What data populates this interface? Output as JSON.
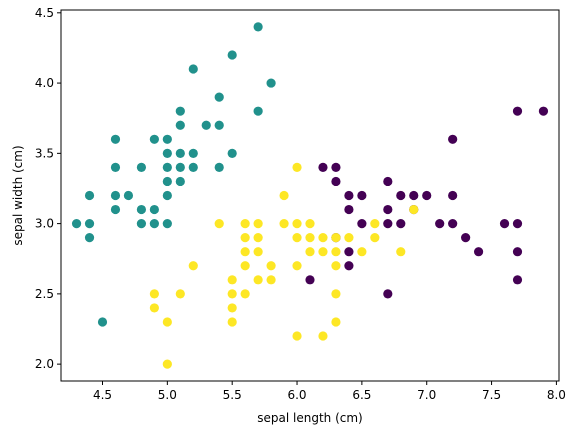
{
  "chart_data": {
    "type": "scatter",
    "xlabel": "sepal length (cm)",
    "ylabel": "sepal width (cm)",
    "xlim": [
      4.18,
      8.02
    ],
    "ylim": [
      1.88,
      4.52
    ],
    "xticks": [
      4.5,
      5.0,
      5.5,
      6.0,
      6.5,
      7.0,
      7.5,
      8.0
    ],
    "xtick_labels": [
      "4.5",
      "5.0",
      "5.5",
      "6.0",
      "6.5",
      "7.0",
      "7.5",
      "8.0"
    ],
    "yticks": [
      2.0,
      2.5,
      3.0,
      3.5,
      4.0,
      4.5
    ],
    "ytick_labels": [
      "2.0",
      "2.5",
      "3.0",
      "3.5",
      "4.0",
      "4.5"
    ],
    "grid": false,
    "legend": "none",
    "series": [
      {
        "color": "#21918c",
        "points": [
          [
            4.3,
            3.0
          ],
          [
            4.4,
            2.9
          ],
          [
            4.4,
            3.0
          ],
          [
            4.4,
            3.2
          ],
          [
            4.5,
            2.3
          ],
          [
            4.6,
            3.1
          ],
          [
            4.6,
            3.2
          ],
          [
            4.6,
            3.4
          ],
          [
            4.6,
            3.6
          ],
          [
            4.7,
            3.2
          ],
          [
            4.8,
            3.0
          ],
          [
            4.8,
            3.1
          ],
          [
            4.8,
            3.4
          ],
          [
            4.9,
            3.0
          ],
          [
            4.9,
            3.1
          ],
          [
            4.9,
            3.6
          ],
          [
            5.0,
            3.0
          ],
          [
            5.0,
            3.2
          ],
          [
            5.0,
            3.3
          ],
          [
            5.0,
            3.4
          ],
          [
            5.0,
            3.5
          ],
          [
            5.0,
            3.6
          ],
          [
            5.1,
            3.3
          ],
          [
            5.1,
            3.4
          ],
          [
            5.1,
            3.5
          ],
          [
            5.1,
            3.7
          ],
          [
            5.1,
            3.8
          ],
          [
            5.2,
            3.4
          ],
          [
            5.2,
            3.5
          ],
          [
            5.2,
            4.1
          ],
          [
            5.3,
            3.7
          ],
          [
            5.4,
            3.4
          ],
          [
            5.4,
            3.7
          ],
          [
            5.4,
            3.9
          ],
          [
            5.5,
            3.5
          ],
          [
            5.5,
            4.2
          ],
          [
            5.7,
            3.8
          ],
          [
            5.7,
            4.4
          ],
          [
            5.8,
            4.0
          ]
        ]
      },
      {
        "color": "#440154",
        "points": [
          [
            6.1,
            2.6
          ],
          [
            6.2,
            3.4
          ],
          [
            6.3,
            2.9
          ],
          [
            6.3,
            3.3
          ],
          [
            6.3,
            3.4
          ],
          [
            6.4,
            2.7
          ],
          [
            6.4,
            2.8
          ],
          [
            6.4,
            3.1
          ],
          [
            6.4,
            3.2
          ],
          [
            6.5,
            3.0
          ],
          [
            6.5,
            3.2
          ],
          [
            6.7,
            2.5
          ],
          [
            6.7,
            3.0
          ],
          [
            6.7,
            3.1
          ],
          [
            6.7,
            3.3
          ],
          [
            6.8,
            3.0
          ],
          [
            6.8,
            3.2
          ],
          [
            6.9,
            3.1
          ],
          [
            6.9,
            3.2
          ],
          [
            7.0,
            3.2
          ],
          [
            7.1,
            3.0
          ],
          [
            7.2,
            3.0
          ],
          [
            7.2,
            3.2
          ],
          [
            7.2,
            3.6
          ],
          [
            7.3,
            2.9
          ],
          [
            7.4,
            2.8
          ],
          [
            7.6,
            3.0
          ],
          [
            7.7,
            2.6
          ],
          [
            7.7,
            2.8
          ],
          [
            7.7,
            3.0
          ],
          [
            7.7,
            3.8
          ],
          [
            7.9,
            3.8
          ]
        ]
      },
      {
        "color": "#fde725",
        "points": [
          [
            4.9,
            2.4
          ],
          [
            4.9,
            2.5
          ],
          [
            5.0,
            2.0
          ],
          [
            5.0,
            2.3
          ],
          [
            5.1,
            2.5
          ],
          [
            5.2,
            2.7
          ],
          [
            5.4,
            3.0
          ],
          [
            5.5,
            2.3
          ],
          [
            5.5,
            2.4
          ],
          [
            5.5,
            2.5
          ],
          [
            5.5,
            2.6
          ],
          [
            5.6,
            2.5
          ],
          [
            5.6,
            2.7
          ],
          [
            5.6,
            2.8
          ],
          [
            5.6,
            2.9
          ],
          [
            5.6,
            3.0
          ],
          [
            5.7,
            2.6
          ],
          [
            5.7,
            2.8
          ],
          [
            5.7,
            2.9
          ],
          [
            5.7,
            3.0
          ],
          [
            5.8,
            2.6
          ],
          [
            5.8,
            2.7
          ],
          [
            5.9,
            3.0
          ],
          [
            5.9,
            3.2
          ],
          [
            6.0,
            2.2
          ],
          [
            6.0,
            2.7
          ],
          [
            6.0,
            2.9
          ],
          [
            6.0,
            3.0
          ],
          [
            6.0,
            3.4
          ],
          [
            6.1,
            2.8
          ],
          [
            6.1,
            2.9
          ],
          [
            6.1,
            3.0
          ],
          [
            6.2,
            2.2
          ],
          [
            6.2,
            2.8
          ],
          [
            6.2,
            2.9
          ],
          [
            6.3,
            2.3
          ],
          [
            6.3,
            2.5
          ],
          [
            6.3,
            2.7
          ],
          [
            6.3,
            2.8
          ],
          [
            6.3,
            2.9
          ],
          [
            6.4,
            2.9
          ],
          [
            6.5,
            2.8
          ],
          [
            6.6,
            2.9
          ],
          [
            6.6,
            3.0
          ],
          [
            6.8,
            2.8
          ],
          [
            6.9,
            3.1
          ]
        ]
      }
    ]
  }
}
